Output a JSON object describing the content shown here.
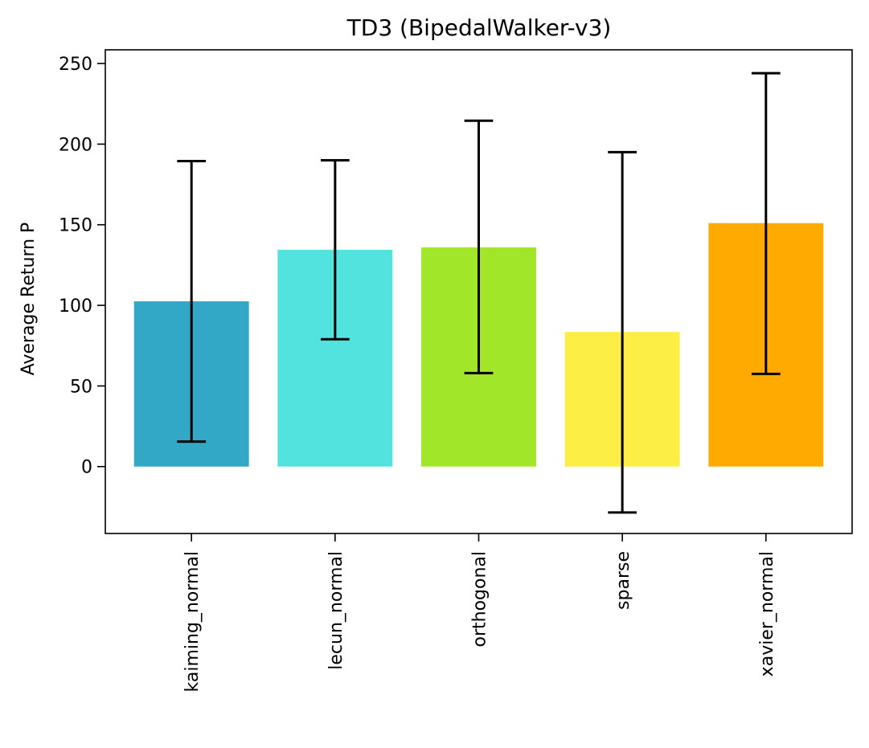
{
  "chart_data": {
    "type": "bar",
    "title": "TD3 (BipedalWalker-v3)",
    "xlabel": "",
    "ylabel": "Average Return P",
    "categories": [
      "kaiming_normal",
      "lecun_normal",
      "orthogonal",
      "sparse",
      "xavier_normal"
    ],
    "values": [
      102.5,
      134.5,
      136,
      83.5,
      151
    ],
    "error_low": [
      15.5,
      79,
      58,
      -28.5,
      57.5
    ],
    "error_high": [
      189.5,
      190,
      214.5,
      195,
      244
    ],
    "colors": [
      "#33a7c6",
      "#53e3df",
      "#a1e629",
      "#fdee45",
      "#ffaa00"
    ],
    "error_color": "#000000",
    "ylim": [
      -41.5,
      258.5
    ],
    "yticks": [
      0,
      50,
      100,
      150,
      200,
      250
    ],
    "grid": false,
    "legend": "none",
    "xtick_rotation": 90
  }
}
